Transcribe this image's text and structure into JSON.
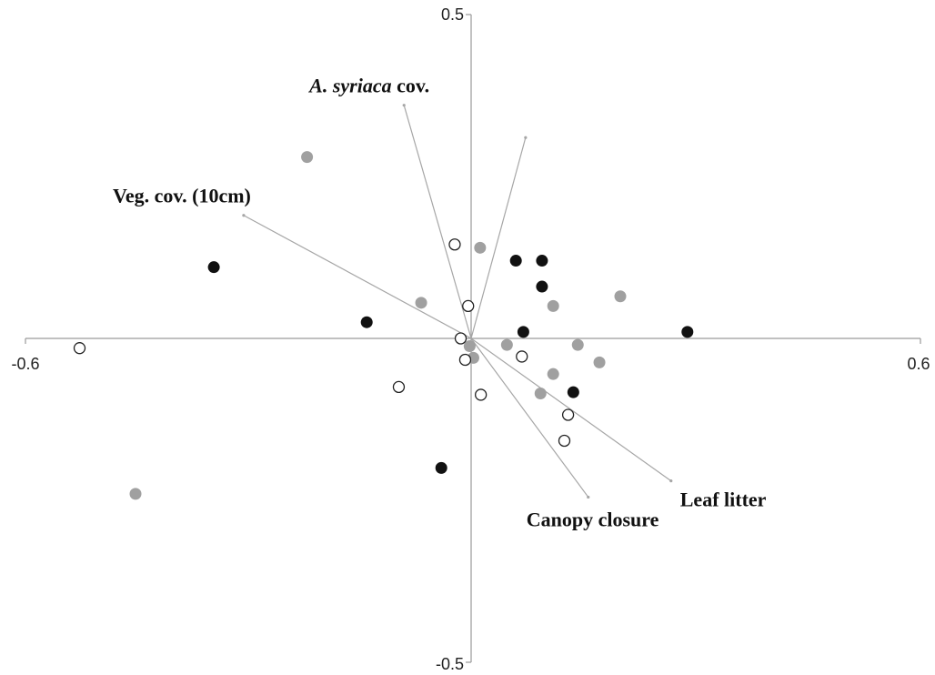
{
  "colors": {
    "background": "#ffffff",
    "axis": "#9a9a9a",
    "vector": "#a6a6a6",
    "black_group": "#111111",
    "gray_group": "#a0a0a0",
    "open_group_fill": "#ffffff",
    "open_group_stroke": "#222222"
  },
  "chart_data": {
    "type": "scatter",
    "title": "",
    "xlabel": "",
    "ylabel": "",
    "xlim": [
      -0.6,
      0.6
    ],
    "ylim": [
      -0.5,
      0.5
    ],
    "grid": false,
    "axis_ticks": {
      "x_min": "-0.6",
      "x_max": "0.6",
      "y_max": "0.5",
      "y_min": "-0.5"
    },
    "series": [
      {
        "style": "filled-black",
        "points": [
          {
            "x": -0.345,
            "y": 0.11
          },
          {
            "x": -0.14,
            "y": 0.025
          },
          {
            "x": -0.04,
            "y": -0.2
          },
          {
            "x": 0.06,
            "y": 0.12
          },
          {
            "x": 0.095,
            "y": 0.12
          },
          {
            "x": 0.095,
            "y": 0.08
          },
          {
            "x": 0.07,
            "y": 0.01
          },
          {
            "x": 0.29,
            "y": 0.01
          },
          {
            "x": 0.137,
            "y": -0.083
          }
        ]
      },
      {
        "style": "filled-gray",
        "points": [
          {
            "x": -0.22,
            "y": 0.28
          },
          {
            "x": -0.067,
            "y": 0.055
          },
          {
            "x": 0.012,
            "y": 0.14
          },
          {
            "x": 0.11,
            "y": 0.05
          },
          {
            "x": 0.2,
            "y": 0.065
          },
          {
            "x": 0.048,
            "y": -0.01
          },
          {
            "x": 0.143,
            "y": -0.01
          },
          {
            "x": -0.002,
            "y": -0.012
          },
          {
            "x": 0.003,
            "y": -0.03
          },
          {
            "x": 0.11,
            "y": -0.055
          },
          {
            "x": 0.172,
            "y": -0.037
          },
          {
            "x": 0.093,
            "y": -0.085
          },
          {
            "x": -0.45,
            "y": -0.24
          }
        ]
      },
      {
        "style": "open",
        "points": [
          {
            "x": -0.525,
            "y": -0.015
          },
          {
            "x": -0.022,
            "y": 0.145
          },
          {
            "x": -0.004,
            "y": 0.05
          },
          {
            "x": -0.014,
            "y": 0.0
          },
          {
            "x": -0.008,
            "y": -0.033
          },
          {
            "x": 0.068,
            "y": -0.028
          },
          {
            "x": 0.013,
            "y": -0.087
          },
          {
            "x": -0.097,
            "y": -0.075
          },
          {
            "x": 0.13,
            "y": -0.118
          },
          {
            "x": 0.125,
            "y": -0.158
          }
        ]
      }
    ],
    "vectors": [
      {
        "label_italic": "A. syriaca",
        "label_rest": " cov.",
        "x": -0.09,
        "y": 0.36
      },
      {
        "label_italic": "",
        "label_rest": "",
        "x": 0.073,
        "y": 0.31
      },
      {
        "label_italic": "",
        "label_rest": "Veg. cov. (10cm)",
        "x": -0.305,
        "y": 0.19
      },
      {
        "label_italic": "",
        "label_rest": "Leaf litter",
        "x": 0.268,
        "y": -0.22
      },
      {
        "label_italic": "",
        "label_rest": "Canopy closure",
        "x": 0.157,
        "y": -0.245
      }
    ]
  }
}
